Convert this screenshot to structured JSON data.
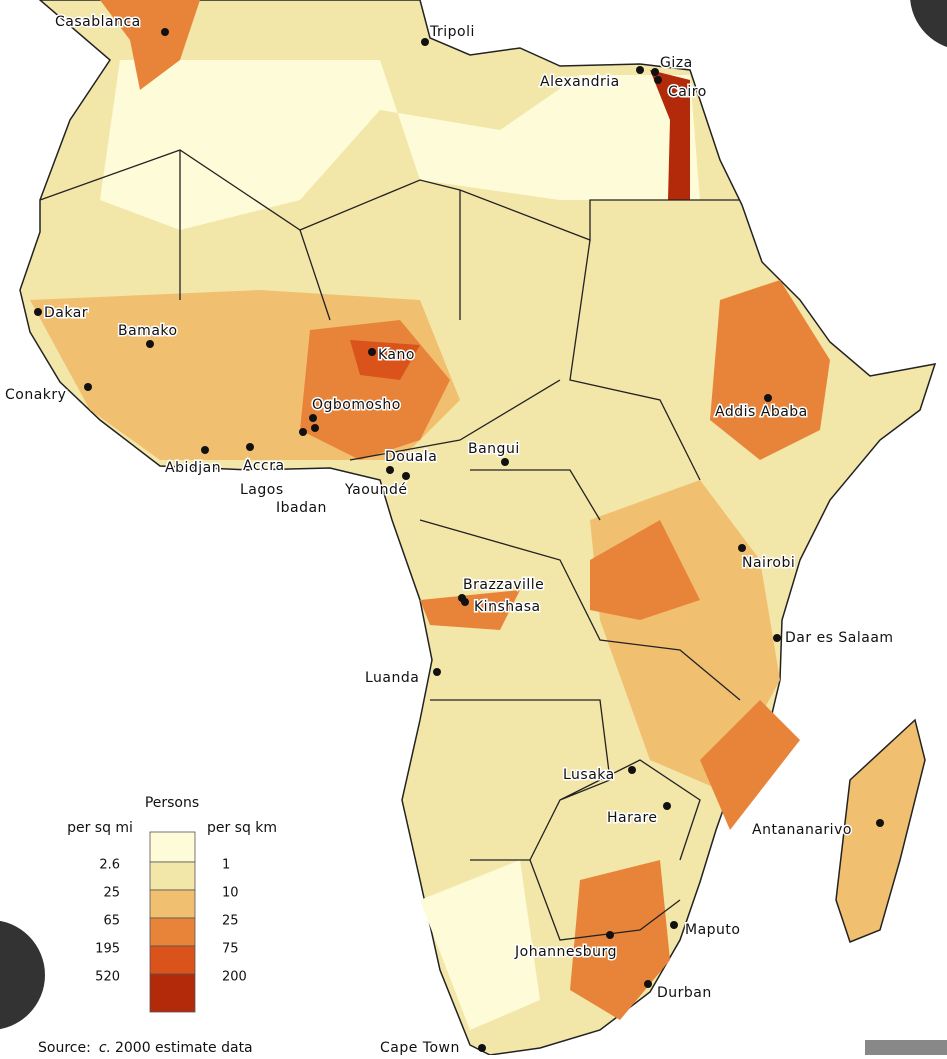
{
  "legend": {
    "title": "Persons",
    "left_header": "per sq mi",
    "right_header": "per sq km",
    "per_sq_mi": [
      2.6,
      25,
      65,
      195,
      520
    ],
    "per_sq_km": [
      1,
      10,
      25,
      75,
      200
    ]
  },
  "cities": [
    "Casablanca",
    "Tripoli",
    "Giza",
    "Alexandria",
    "Cairo",
    "Dakar",
    "Bamako",
    "Conakry",
    "Kano",
    "Ogbomosho",
    "Abidjan",
    "Accra",
    "Lagos",
    "Ibadan",
    "Douala",
    "Yaoundé",
    "Bangui",
    "Addis Ababa",
    "Nairobi",
    "Brazzaville",
    "Kinshasa",
    "Dar es Salaam",
    "Luanda",
    "Lusaka",
    "Harare",
    "Antananarivo",
    "Maputo",
    "Johannesburg",
    "Durban",
    "Cape Town"
  ],
  "source": {
    "label": "Source:",
    "qualifier": "c.",
    "text": "2000 estimate data"
  }
}
